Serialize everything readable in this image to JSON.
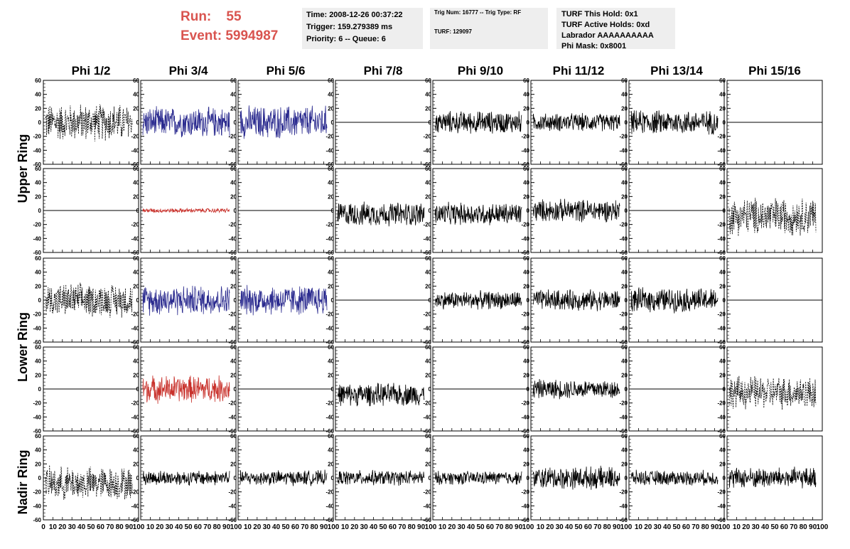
{
  "header": {
    "run_label": "Run:",
    "run_value": "55",
    "event_label": "Event:",
    "event_value": "5994987"
  },
  "info": {
    "time": "Time: 2008-12-26 00:37:22",
    "trigger": "Trigger: 159.279389 ms",
    "priority": "Priority: 6 -- Queue: 6",
    "trig_num": "Trig Num: 16777 -- Trig Type: RF",
    "turf": "TURF: 129097",
    "turf_this_hold": "TURF This Hold: 0x1",
    "turf_active_holds": "TURF Active Holds: 0xd",
    "labrador": "Labrador AAAAAAAAAA",
    "phi_mask": "Phi Mask: 0x8001"
  },
  "chart_data": {
    "type": "line",
    "columns": [
      "Phi 1/2",
      "Phi 3/4",
      "Phi 5/6",
      "Phi 7/8",
      "Phi 9/10",
      "Phi 11/12",
      "Phi 13/14",
      "Phi 15/16"
    ],
    "ring_labels": [
      "Upper Ring",
      "Lower Ring",
      "Nadir Ring"
    ],
    "ylim": [
      -60,
      60
    ],
    "yticks": [
      "60",
      "40",
      "20",
      "0",
      "-20",
      "-40",
      "-60"
    ],
    "xlim": [
      0,
      100
    ],
    "xticks": [
      "0",
      "10",
      "20",
      "30",
      "40",
      "50",
      "60",
      "70",
      "80",
      "90",
      "100"
    ],
    "colors": {
      "black": "#000000",
      "blue": "#2b2b8f",
      "red": "#c8302a"
    },
    "rows": [
      [
        {
          "style": "dashed",
          "color": "black",
          "amplitude": 25,
          "offset": 0
        },
        {
          "style": "solid",
          "color": "blue",
          "amplitude": 20,
          "offset": 0
        },
        {
          "style": "solid",
          "color": "blue",
          "amplitude": 22,
          "offset": 0
        },
        {
          "style": "flat",
          "color": "black",
          "amplitude": 0,
          "offset": 0
        },
        {
          "style": "solid",
          "color": "black",
          "amplitude": 15,
          "offset": 0
        },
        {
          "style": "solid",
          "color": "black",
          "amplitude": 12,
          "offset": 0
        },
        {
          "style": "solid",
          "color": "black",
          "amplitude": 16,
          "offset": 0
        },
        {
          "style": "flat",
          "color": "black",
          "amplitude": 0,
          "offset": 0
        }
      ],
      [
        {
          "style": "flat",
          "color": "black",
          "amplitude": 0,
          "offset": 0
        },
        {
          "style": "solid",
          "color": "red",
          "amplitude": 3,
          "offset": 0
        },
        {
          "style": "flat",
          "color": "black",
          "amplitude": 0,
          "offset": 0
        },
        {
          "style": "solid",
          "color": "black",
          "amplitude": 16,
          "offset": -5
        },
        {
          "style": "solid",
          "color": "black",
          "amplitude": 15,
          "offset": -5
        },
        {
          "style": "solid",
          "color": "black",
          "amplitude": 15,
          "offset": 0
        },
        {
          "style": "flat",
          "color": "black",
          "amplitude": 0,
          "offset": 0
        },
        {
          "style": "dashed",
          "color": "black",
          "amplitude": 25,
          "offset": -8
        }
      ],
      [
        {
          "style": "dashed",
          "color": "black",
          "amplitude": 22,
          "offset": 0
        },
        {
          "style": "solid",
          "color": "blue",
          "amplitude": 20,
          "offset": 0
        },
        {
          "style": "solid",
          "color": "blue",
          "amplitude": 20,
          "offset": 0
        },
        {
          "style": "flat",
          "color": "black",
          "amplitude": 0,
          "offset": 0
        },
        {
          "style": "solid",
          "color": "black",
          "amplitude": 12,
          "offset": 0
        },
        {
          "style": "solid",
          "color": "black",
          "amplitude": 14,
          "offset": 0
        },
        {
          "style": "solid",
          "color": "black",
          "amplitude": 16,
          "offset": 0
        },
        {
          "style": "flat",
          "color": "black",
          "amplitude": 0,
          "offset": 0
        }
      ],
      [
        {
          "style": "flat",
          "color": "black",
          "amplitude": 0,
          "offset": 0
        },
        {
          "style": "solid",
          "color": "red",
          "amplitude": 18,
          "offset": 0
        },
        {
          "style": "flat",
          "color": "black",
          "amplitude": 0,
          "offset": 0
        },
        {
          "style": "solid",
          "color": "black",
          "amplitude": 15,
          "offset": -8
        },
        {
          "style": "flat",
          "color": "black",
          "amplitude": 0,
          "offset": 0
        },
        {
          "style": "solid",
          "color": "black",
          "amplitude": 13,
          "offset": 0
        },
        {
          "style": "flat",
          "color": "black",
          "amplitude": 0,
          "offset": 0
        },
        {
          "style": "dashed",
          "color": "black",
          "amplitude": 22,
          "offset": -5
        }
      ],
      [
        {
          "style": "dashed",
          "color": "black",
          "amplitude": 22,
          "offset": -8
        },
        {
          "style": "solid",
          "color": "black",
          "amplitude": 10,
          "offset": 0
        },
        {
          "style": "solid",
          "color": "black",
          "amplitude": 10,
          "offset": 0
        },
        {
          "style": "solid",
          "color": "black",
          "amplitude": 10,
          "offset": 0
        },
        {
          "style": "solid",
          "color": "black",
          "amplitude": 9,
          "offset": 0
        },
        {
          "style": "solid",
          "color": "black",
          "amplitude": 15,
          "offset": 0
        },
        {
          "style": "solid",
          "color": "black",
          "amplitude": 10,
          "offset": 0
        },
        {
          "style": "solid",
          "color": "black",
          "amplitude": 14,
          "offset": 0
        }
      ]
    ]
  }
}
